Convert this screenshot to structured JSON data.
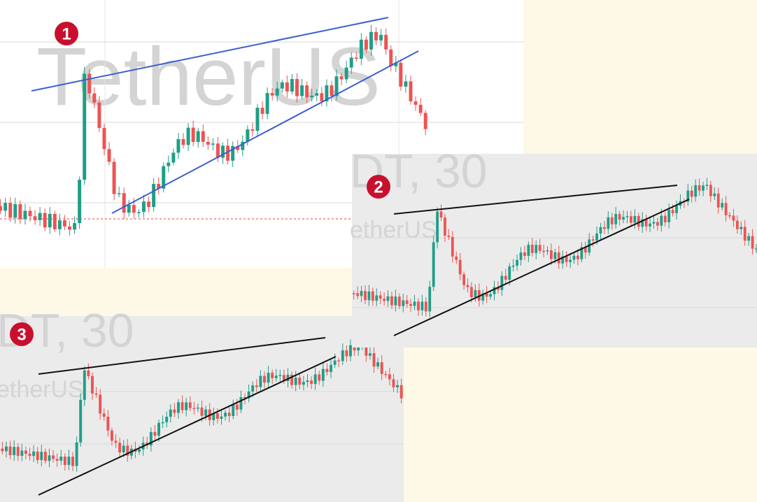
{
  "panels": [
    {
      "badge": "1",
      "watermark": [
        "TetherUS"
      ]
    },
    {
      "badge": "2",
      "watermark": [
        "DT, 30",
        "etherUS"
      ]
    },
    {
      "badge": "3",
      "watermark": [
        "DT, 30",
        "etherUS"
      ]
    }
  ]
}
